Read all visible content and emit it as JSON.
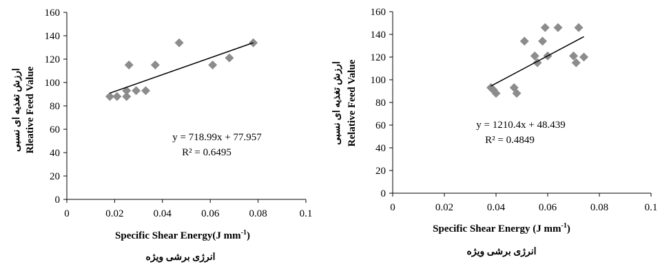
{
  "chart_data": [
    {
      "type": "scatter",
      "title": "",
      "xlabel": "Specific Shear Energy(J mm",
      "xlabel_sup": "-1",
      "xlabel_tail": ")",
      "xlabel_fa": "انرژی برشی ویژه",
      "ylabel": "Rleative Feed Value",
      "ylabel_fa": "ارزش تغذیه ای نسبی",
      "xlim": [
        0,
        0.1
      ],
      "ylim": [
        0,
        160
      ],
      "x_ticks": [
        "0",
        "0.02",
        "0.04",
        "0.06",
        "0.08",
        "0.1"
      ],
      "y_ticks": [
        "0",
        "20",
        "40",
        "60",
        "80",
        "100",
        "120",
        "140",
        "160"
      ],
      "x_tick_values": [
        0,
        0.02,
        0.04,
        0.06,
        0.08,
        0.1
      ],
      "y_tick_values": [
        0,
        20,
        40,
        60,
        80,
        100,
        120,
        140,
        160
      ],
      "marker": "diamond",
      "marker_color": "#8c8c8c",
      "grid": false,
      "points": [
        {
          "x": 0.018,
          "y": 88
        },
        {
          "x": 0.021,
          "y": 88
        },
        {
          "x": 0.025,
          "y": 88
        },
        {
          "x": 0.025,
          "y": 93
        },
        {
          "x": 0.026,
          "y": 115
        },
        {
          "x": 0.029,
          "y": 93
        },
        {
          "x": 0.033,
          "y": 93
        },
        {
          "x": 0.037,
          "y": 115
        },
        {
          "x": 0.047,
          "y": 134
        },
        {
          "x": 0.061,
          "y": 115
        },
        {
          "x": 0.068,
          "y": 121
        },
        {
          "x": 0.078,
          "y": 134
        }
      ],
      "trendline": {
        "slope": 718.99,
        "intercept": 77.957,
        "x_range": [
          0.018,
          0.078
        ],
        "color": "#000000"
      },
      "equation": "y = 718.99x + 77.957",
      "r2": "R² = 0.6495"
    },
    {
      "type": "scatter",
      "title": "",
      "xlabel": "Specific Shear Energy (J mm",
      "xlabel_sup": "-1",
      "xlabel_tail": ")",
      "xlabel_fa": "انرژی برشی ویژه",
      "ylabel": "Relative Feed Value",
      "ylabel_fa": "ارزش تغذیه ای نسبی",
      "xlim": [
        0,
        0.1
      ],
      "ylim": [
        0,
        160
      ],
      "x_ticks": [
        "0",
        "0.02",
        "0.04",
        "0.06",
        "0.08",
        "0.1"
      ],
      "y_ticks": [
        "0",
        "20",
        "40",
        "60",
        "80",
        "100",
        "120",
        "140",
        "160"
      ],
      "x_tick_values": [
        0,
        0.02,
        0.04,
        0.06,
        0.08,
        0.1
      ],
      "y_tick_values": [
        0,
        20,
        40,
        60,
        80,
        100,
        120,
        140,
        160
      ],
      "marker": "diamond",
      "marker_color": "#8c8c8c",
      "grid": false,
      "points": [
        {
          "x": 0.038,
          "y": 93
        },
        {
          "x": 0.039,
          "y": 91
        },
        {
          "x": 0.04,
          "y": 88
        },
        {
          "x": 0.047,
          "y": 93
        },
        {
          "x": 0.048,
          "y": 88
        },
        {
          "x": 0.051,
          "y": 134
        },
        {
          "x": 0.055,
          "y": 121
        },
        {
          "x": 0.056,
          "y": 115
        },
        {
          "x": 0.058,
          "y": 134
        },
        {
          "x": 0.059,
          "y": 146
        },
        {
          "x": 0.06,
          "y": 121
        },
        {
          "x": 0.064,
          "y": 146
        },
        {
          "x": 0.07,
          "y": 121
        },
        {
          "x": 0.071,
          "y": 115
        },
        {
          "x": 0.072,
          "y": 146
        },
        {
          "x": 0.074,
          "y": 120
        }
      ],
      "trendline": {
        "slope": 1210.4,
        "intercept": 48.439,
        "x_range": [
          0.038,
          0.074
        ],
        "color": "#000000"
      },
      "equation": "y = 1210.4x + 48.439",
      "r2": "R² = 0.4849"
    }
  ]
}
